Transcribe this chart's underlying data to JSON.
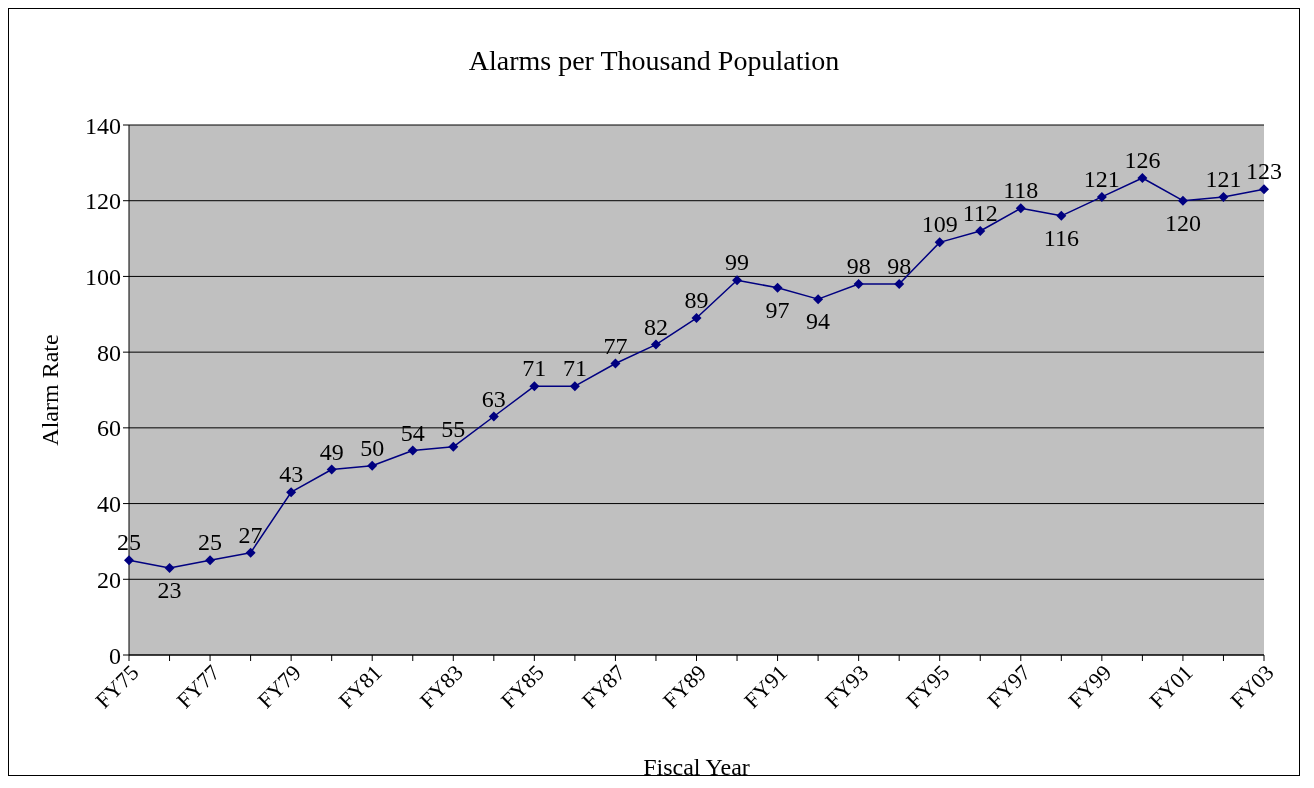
{
  "chart_data": {
    "type": "line",
    "title": "Alarms per Thousand Population",
    "xlabel": "Fiscal Year",
    "ylabel": "Alarm Rate",
    "categories": [
      "FY75",
      null,
      "FY77",
      null,
      "FY79",
      null,
      "FY81",
      null,
      "FY83",
      null,
      "FY85",
      null,
      "FY87",
      null,
      "FY89",
      null,
      "FY91",
      null,
      "FY93",
      null,
      "FY95",
      null,
      "FY97",
      null,
      "FY99",
      null,
      "FY01",
      null,
      "FY03"
    ],
    "series": [
      {
        "color": "#000080",
        "values": [
          25,
          23,
          25,
          27,
          43,
          49,
          50,
          54,
          55,
          63,
          71,
          71,
          77,
          82,
          89,
          99,
          97,
          94,
          98,
          98,
          109,
          112,
          118,
          116,
          121,
          126,
          120,
          121,
          123
        ]
      }
    ],
    "ylim": [
      0,
      140
    ],
    "yticks": [
      0,
      20,
      40,
      60,
      80,
      100,
      120,
      140
    ],
    "grid": "y",
    "marker": "diamond",
    "data_labels": true,
    "legend": false
  }
}
